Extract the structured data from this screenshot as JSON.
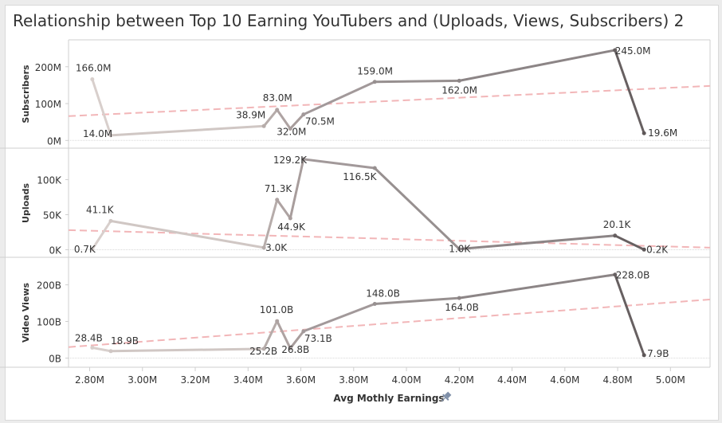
{
  "title": "Relationship between Top 10 Earning YouTubers and (Uploads, Views, Subscribers) 2",
  "chart_data": {
    "type": "line",
    "x_label": "Avg Mothly Earnings",
    "x_tick_labels": [
      "2.80M",
      "3.00M",
      "3.20M",
      "3.40M",
      "3.60M",
      "3.80M",
      "4.00M",
      "4.20M",
      "4.40M",
      "4.60M",
      "4.80M",
      "5.00M"
    ],
    "x_ticks": [
      2.8,
      3.0,
      3.2,
      3.4,
      3.6,
      3.8,
      4.0,
      4.2,
      4.4,
      4.6,
      4.8,
      5.0
    ],
    "x_range": [
      2.72,
      5.15
    ],
    "x": [
      2.81,
      2.88,
      3.46,
      3.51,
      3.56,
      3.61,
      3.88,
      4.2,
      4.79,
      4.9
    ],
    "gradient_colors": [
      "#d8cfcc",
      "#d0c7c4",
      "#b6acaa",
      "#aea3a2",
      "#a89d9c",
      "#a2999a",
      "#979090",
      "#8c8586",
      "#676061",
      "#5e5758"
    ],
    "trend_color": "#f2b6b8",
    "panels": [
      {
        "ylabel": "Subscribers",
        "y_tick_labels": [
          "0M",
          "100M",
          "200M"
        ],
        "y_ticks": [
          0,
          100,
          200
        ],
        "y_range": [
          -8,
          260
        ],
        "values": [
          166.0,
          14.0,
          38.9,
          83.0,
          32.0,
          70.5,
          159.0,
          162.0,
          245.0,
          19.6
        ],
        "labels": [
          "166.0M",
          "14.0M",
          "38.9M",
          "83.0M",
          "32.0M",
          "70.5M",
          "159.0M",
          "162.0M",
          "245.0M",
          "19.6M"
        ],
        "trend": [
          66,
          148
        ]
      },
      {
        "ylabel": "Uploads",
        "y_tick_labels": [
          "0K",
          "50K",
          "100K"
        ],
        "y_ticks": [
          0,
          50,
          100
        ],
        "y_range": [
          -4,
          137
        ],
        "values": [
          0.7,
          41.1,
          3.0,
          71.3,
          44.9,
          129.2,
          116.5,
          1.0,
          20.1,
          0.2
        ],
        "labels": [
          "0.7K",
          "41.1K",
          "3.0K",
          "71.3K",
          "44.9K",
          "129.2K",
          "116.5K",
          "1.0K",
          "20.1K",
          "0.2K"
        ],
        "trend": [
          28,
          3
        ]
      },
      {
        "ylabel": "Video Views",
        "y_tick_labels": [
          "0B",
          "100B",
          "200B"
        ],
        "y_ticks": [
          0,
          100,
          200
        ],
        "y_range": [
          -12,
          260
        ],
        "values": [
          28.4,
          18.9,
          25.2,
          101.0,
          26.8,
          73.1,
          148.0,
          164.0,
          228.0,
          7.9
        ],
        "labels": [
          "28.4B",
          "18.9B",
          "25.2B",
          "101.0B",
          "26.8B",
          "73.1B",
          "148.0B",
          "164.0B",
          "228.0B",
          "7.9B"
        ],
        "trend": [
          30,
          160
        ]
      }
    ]
  }
}
